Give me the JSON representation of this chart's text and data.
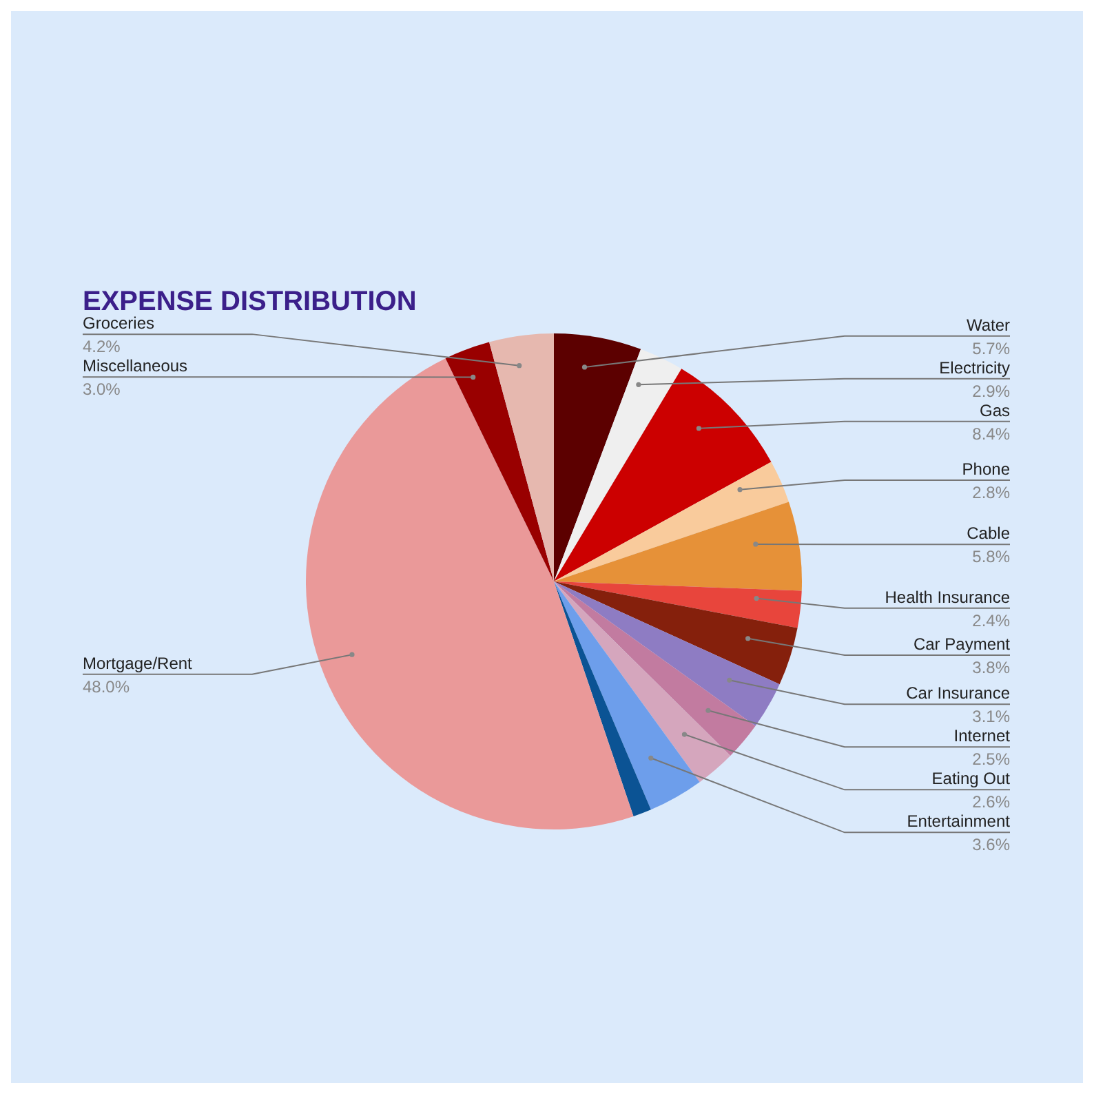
{
  "chart_data": {
    "type": "pie",
    "title": "EXPENSE DISTRIBUTION",
    "categories": [
      "Water",
      "Electricity",
      "Gas",
      "Phone",
      "Cable",
      "Health Insurance",
      "Car Payment",
      "Car Insurance",
      "Internet",
      "Eating Out",
      "Entertainment",
      null,
      "Mortgage/Rent",
      "Miscellaneous",
      "Groceries"
    ],
    "values": [
      5.7,
      2.9,
      8.4,
      2.8,
      5.8,
      2.4,
      3.8,
      3.1,
      2.5,
      2.6,
      3.6,
      1.2,
      48.0,
      3.0,
      4.2
    ],
    "value_labels": [
      "5.7%",
      "2.9%",
      "8.4%",
      "2.8%",
      "5.8%",
      "2.4%",
      "3.8%",
      "3.1%",
      "2.5%",
      "2.6%",
      "3.6%",
      null,
      "48.0%",
      "3.0%",
      "4.2%"
    ],
    "colors": [
      "#5c0000",
      "#efefef",
      "#cc0000",
      "#f9cb9c",
      "#e69138",
      "#e8453c",
      "#85200c",
      "#8e7cc3",
      "#c27ba0",
      "#d5a6bd",
      "#6d9eeb",
      "#0b5394",
      "#ea9999",
      "#990000",
      "#e6b8af"
    ],
    "legend": false
  }
}
